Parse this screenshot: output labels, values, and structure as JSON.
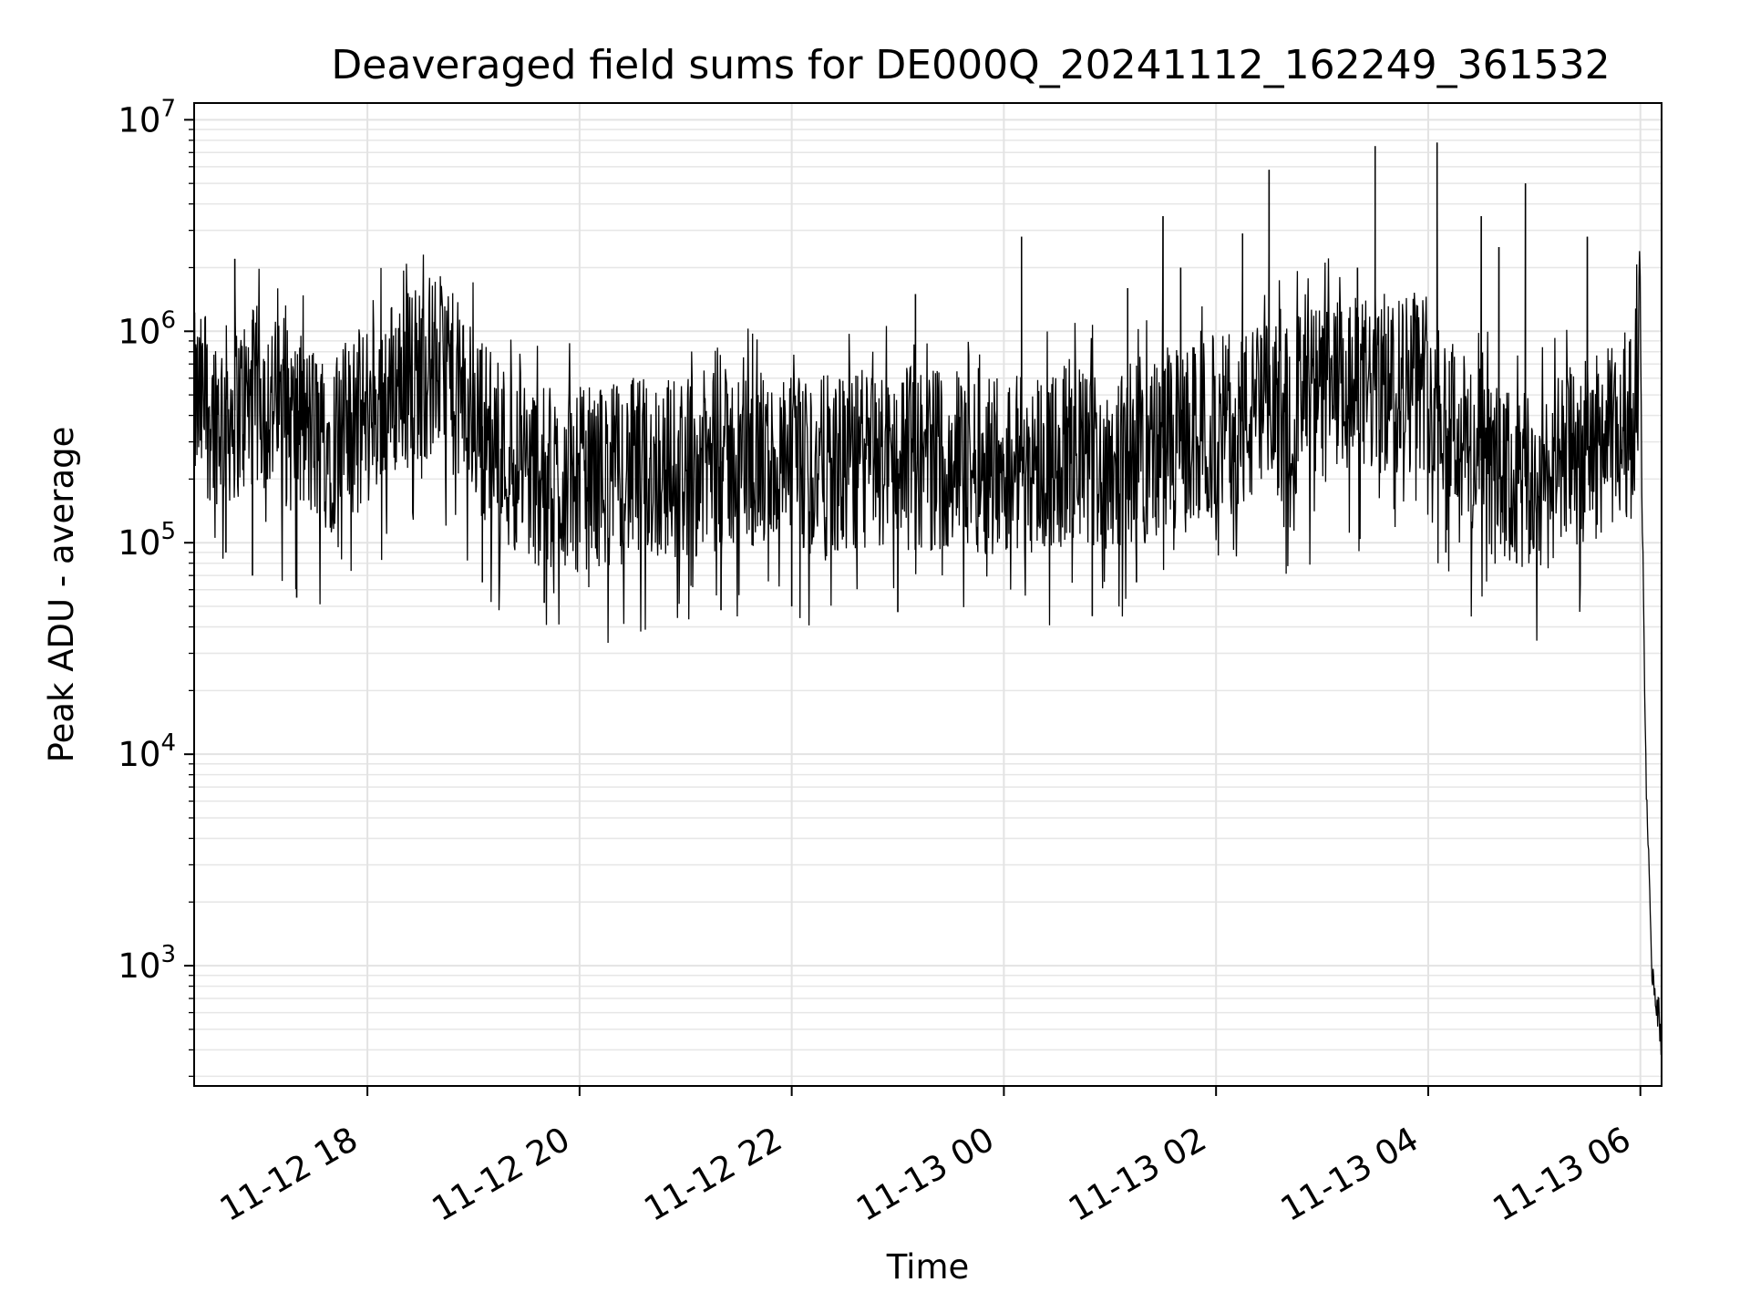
{
  "chart_data": {
    "type": "line",
    "title": "Deaveraged field sums for DE000Q_20241112_162249_361532",
    "xlabel": "Time",
    "ylabel": "Peak ADU - average",
    "yscale": "log",
    "ylim": [
      270,
      12000000
    ],
    "xlim": [
      "2024-11-12 16:22",
      "2024-11-13 06:12"
    ],
    "grid": true,
    "legend": "none",
    "line_color": "#000000",
    "x_ticks": [
      {
        "label": "11-12 18",
        "value": "2024-11-12 18:00"
      },
      {
        "label": "11-12 20",
        "value": "2024-11-12 20:00"
      },
      {
        "label": "11-12 22",
        "value": "2024-11-12 22:00"
      },
      {
        "label": "11-13 00",
        "value": "2024-11-13 00:00"
      },
      {
        "label": "11-13 02",
        "value": "2024-11-13 02:00"
      },
      {
        "label": "11-13 04",
        "value": "2024-11-13 04:00"
      },
      {
        "label": "11-13 06",
        "value": "2024-11-13 06:00"
      }
    ],
    "y_ticks": [
      {
        "base": "10",
        "exp": "3",
        "value": 1000
      },
      {
        "base": "10",
        "exp": "4",
        "value": 10000
      },
      {
        "base": "10",
        "exp": "5",
        "value": 100000
      },
      {
        "base": "10",
        "exp": "6",
        "value": 1000000
      },
      {
        "base": "10",
        "exp": "7",
        "value": 10000000
      }
    ],
    "series": [
      {
        "x": [
          "2024-11-12 16:22",
          "2024-11-12 16:40",
          "2024-11-12 17:00",
          "2024-11-12 17:20",
          "2024-11-12 17:40",
          "2024-11-12 18:00",
          "2024-11-12 18:20",
          "2024-11-12 18:40",
          "2024-11-12 19:00",
          "2024-11-12 19:20",
          "2024-11-12 19:40",
          "2024-11-12 20:00",
          "2024-11-12 20:30",
          "2024-11-12 21:00",
          "2024-11-12 21:30",
          "2024-11-12 22:00",
          "2024-11-12 22:30",
          "2024-11-12 23:00",
          "2024-11-12 23:30",
          "2024-11-13 00:00",
          "2024-11-13 00:30",
          "2024-11-13 01:00",
          "2024-11-13 01:30",
          "2024-11-13 02:00",
          "2024-11-13 02:30",
          "2024-11-13 03:00",
          "2024-11-13 03:30",
          "2024-11-13 04:00",
          "2024-11-13 04:20",
          "2024-11-13 04:40",
          "2024-11-13 05:00",
          "2024-11-13 05:20",
          "2024-11-13 05:40",
          "2024-11-13 05:55",
          "2024-11-13 06:00",
          "2024-11-13 06:01",
          "2024-11-13 06:03",
          "2024-11-13 06:06",
          "2024-11-13 06:09",
          "2024-11-13 06:12"
        ],
        "y": [
          450000,
          400000,
          500000,
          350000,
          300000,
          400000,
          600000,
          700000,
          400000,
          250000,
          200000,
          200000,
          220000,
          230000,
          250000,
          220000,
          230000,
          250000,
          250000,
          240000,
          250000,
          250000,
          280000,
          350000,
          400000,
          500000,
          550000,
          600000,
          300000,
          200000,
          180000,
          250000,
          300000,
          350000,
          900000,
          150000,
          10000,
          1100,
          700,
          450
        ]
      }
    ],
    "spikes": [
      {
        "x": "2024-11-12 16:45",
        "y": 2200000
      },
      {
        "x": "2024-11-12 23:10",
        "y": 1500000
      },
      {
        "x": "2024-11-13 00:10",
        "y": 2800000
      },
      {
        "x": "2024-11-13 01:10",
        "y": 1600000
      },
      {
        "x": "2024-11-13 01:30",
        "y": 3500000
      },
      {
        "x": "2024-11-13 01:40",
        "y": 2000000
      },
      {
        "x": "2024-11-13 02:15",
        "y": 2900000
      },
      {
        "x": "2024-11-13 02:30",
        "y": 5800000
      },
      {
        "x": "2024-11-13 03:20",
        "y": 2000000
      },
      {
        "x": "2024-11-13 03:30",
        "y": 7500000
      },
      {
        "x": "2024-11-13 04:05",
        "y": 7800000
      },
      {
        "x": "2024-11-13 04:30",
        "y": 3500000
      },
      {
        "x": "2024-11-13 04:40",
        "y": 2500000
      },
      {
        "x": "2024-11-13 04:55",
        "y": 5000000
      },
      {
        "x": "2024-11-13 05:30",
        "y": 2800000
      }
    ],
    "dips": [
      {
        "x": "2024-11-12 16:40",
        "y": 90000
      },
      {
        "x": "2024-11-12 16:55",
        "y": 70000
      },
      {
        "x": "2024-11-12 17:20",
        "y": 55000
      },
      {
        "x": "2024-11-12 19:05",
        "y": 65000
      },
      {
        "x": "2024-11-12 19:40",
        "y": 52000
      },
      {
        "x": "2024-11-12 21:20",
        "y": 48000
      },
      {
        "x": "2024-11-12 22:00",
        "y": 50000
      },
      {
        "x": "2024-11-12 23:00",
        "y": 47000
      },
      {
        "x": "2024-11-13 00:50",
        "y": 45000
      },
      {
        "x": "2024-11-13 01:15",
        "y": 65000
      },
      {
        "x": "2024-11-13 04:10",
        "y": 90000
      },
      {
        "x": "2024-11-13 04:50",
        "y": 80000
      }
    ]
  }
}
